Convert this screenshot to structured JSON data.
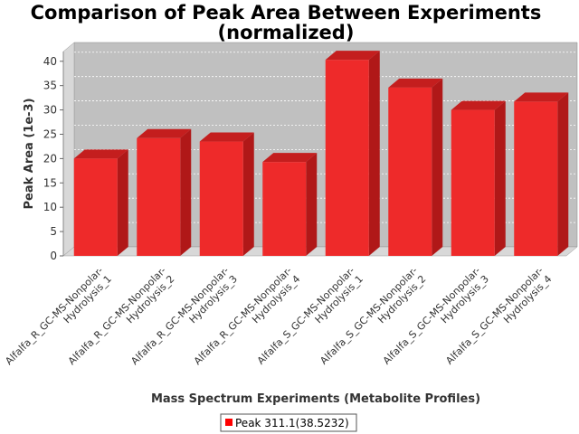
{
  "chart_data": {
    "type": "bar",
    "title_lines": [
      "Comparison of Peak Area Between Experiments",
      "(normalized)"
    ],
    "xlabel": "Mass Spectrum Experiments (Metabolite Profiles)",
    "ylabel": "Peak Area (1e-3)",
    "ylim": [
      0,
      42
    ],
    "yticks": [
      0,
      5,
      10,
      15,
      20,
      25,
      30,
      35,
      40
    ],
    "grid": true,
    "legend_position": "bottom",
    "categories": [
      [
        "Alfalfa_R_GC-MS-Nonpolar-",
        "Hydrolysis_1"
      ],
      [
        "Alfalfa_R_GC-MS-Nonpolar-",
        "Hydrolysis_2"
      ],
      [
        "Alfalfa_R_GC-MS-Nonpolar-",
        "Hydrolysis_3"
      ],
      [
        "Alfalfa_R_GC-MS-Nonpolar-",
        "Hydrolysis_4"
      ],
      [
        "Alfalfa_S_GC-MS-Nonpolar-",
        "Hydrolysis_1"
      ],
      [
        "Alfalfa_S_GC-MS-Nonpolar-",
        "Hydrolysis_2"
      ],
      [
        "Alfalfa_S_GC-MS-Nonpolar-",
        "Hydrolysis_3"
      ],
      [
        "Alfalfa_S_GC-MS-Nonpolar-",
        "Hydrolysis_4"
      ]
    ],
    "series": [
      {
        "name": "Peak 311.1(38.5232)",
        "color": "#ff0000",
        "values": [
          20.0,
          24.2,
          23.5,
          19.3,
          40.3,
          34.6,
          30.0,
          31.7
        ]
      }
    ]
  },
  "colors": {
    "plot_background": "#c0c0c0",
    "wall": "#d8d8d8",
    "bar_front": "#ee2a2a",
    "bar_top": "#c41e1e",
    "bar_side": "#b01818"
  }
}
